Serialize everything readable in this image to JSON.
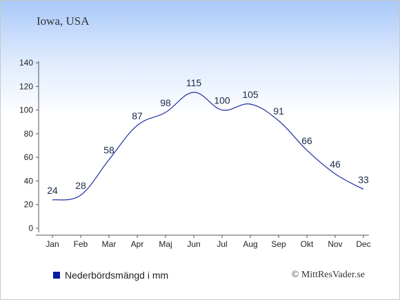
{
  "title": "Iowa, USA",
  "legend_label": "Nederbördsmängd i mm",
  "copyright": "© MittResVader.se",
  "colors": {
    "line": "#1f2fa0",
    "legend_swatch": "#0a1aa0",
    "axis": "#555555"
  },
  "chart_data": {
    "type": "line",
    "categories": [
      "Jan",
      "Feb",
      "Mar",
      "Apr",
      "Maj",
      "Jun",
      "Jul",
      "Aug",
      "Sep",
      "Okt",
      "Nov",
      "Dec"
    ],
    "values": [
      24,
      28,
      58,
      87,
      98,
      115,
      100,
      105,
      91,
      66,
      46,
      33
    ],
    "yticks": [
      0,
      20,
      40,
      60,
      80,
      100,
      120,
      140
    ],
    "ylim": [
      0,
      140
    ],
    "grid": false,
    "legend_position": "bottom-left"
  }
}
